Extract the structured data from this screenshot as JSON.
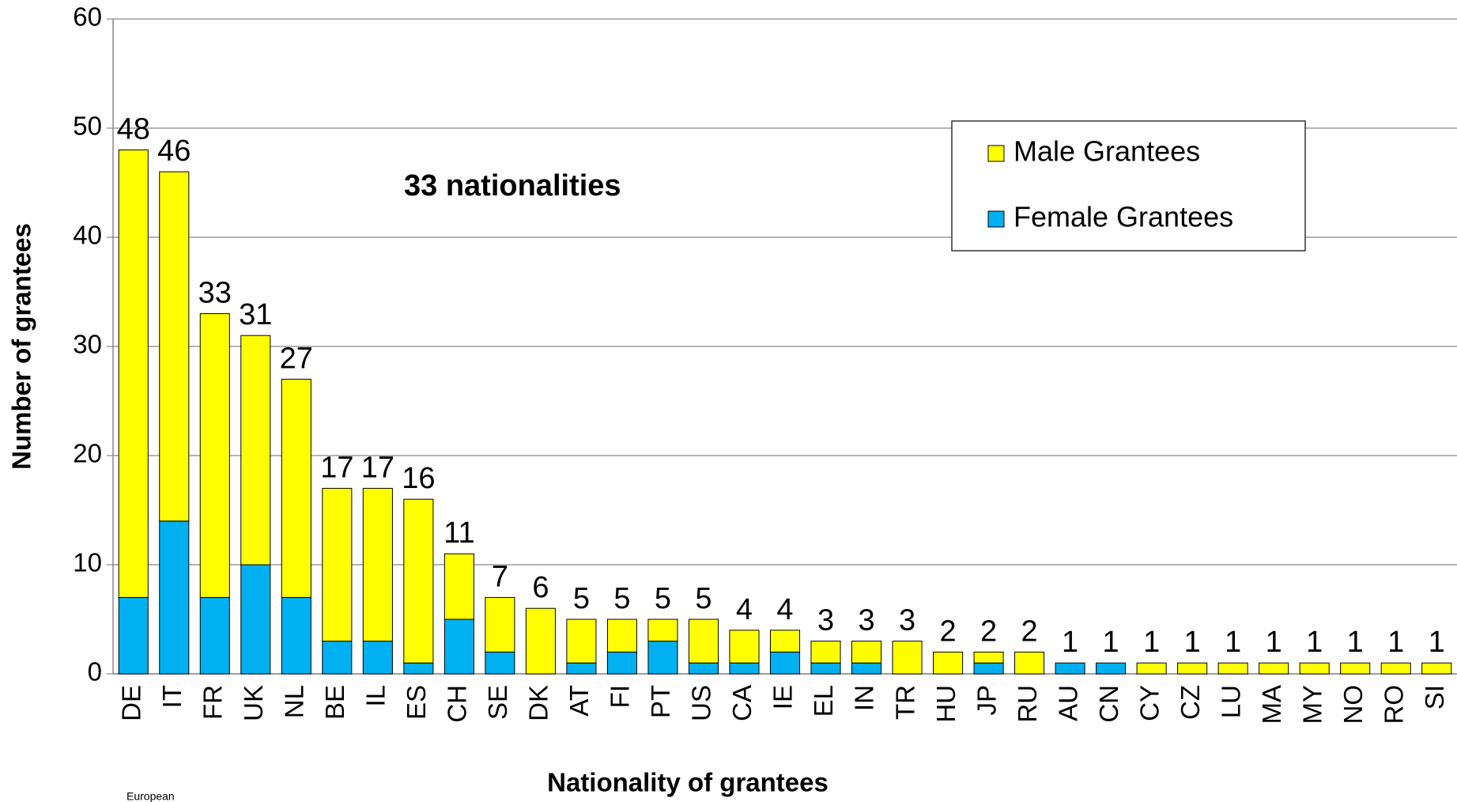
{
  "chart_data": {
    "type": "stacked-bar",
    "annotation": "33 nationalities",
    "x_label": "Nationality of grantees",
    "y_label": "Number of grantees",
    "footer": "European",
    "categories": [
      "DE",
      "IT",
      "FR",
      "UK",
      "NL",
      "BE",
      "IL",
      "ES",
      "CH",
      "SE",
      "DK",
      "AT",
      "FI",
      "PT",
      "US",
      "CA",
      "IE",
      "EL",
      "IN",
      "TR",
      "HU",
      "JP",
      "RU",
      "AU",
      "CN",
      "CY",
      "CZ",
      "LU",
      "MA",
      "MY",
      "NO",
      "RO",
      "SI"
    ],
    "series": [
      {
        "name": "Female Grantees",
        "color": "#00b0f0",
        "values": [
          7,
          14,
          7,
          10,
          7,
          3,
          3,
          1,
          5,
          2,
          0,
          1,
          2,
          3,
          1,
          1,
          2,
          1,
          1,
          0,
          0,
          1,
          0,
          1,
          1,
          0,
          0,
          0,
          0,
          0,
          0,
          0,
          0
        ]
      },
      {
        "name": "Male Grantees",
        "color": "#ffff00",
        "values": [
          41,
          32,
          26,
          21,
          20,
          14,
          14,
          15,
          6,
          5,
          6,
          4,
          3,
          2,
          4,
          3,
          2,
          2,
          2,
          3,
          2,
          1,
          2,
          0,
          0,
          1,
          1,
          1,
          1,
          1,
          1,
          1,
          1
        ]
      }
    ],
    "totals": [
      48,
      46,
      33,
      31,
      27,
      17,
      17,
      16,
      11,
      7,
      6,
      5,
      5,
      5,
      5,
      4,
      4,
      3,
      3,
      3,
      2,
      2,
      2,
      1,
      1,
      1,
      1,
      1,
      1,
      1,
      1,
      1,
      1
    ],
    "ylim": [
      0,
      60
    ],
    "yticks": [
      0,
      10,
      20,
      30,
      40,
      50,
      60
    ],
    "grid": true
  }
}
